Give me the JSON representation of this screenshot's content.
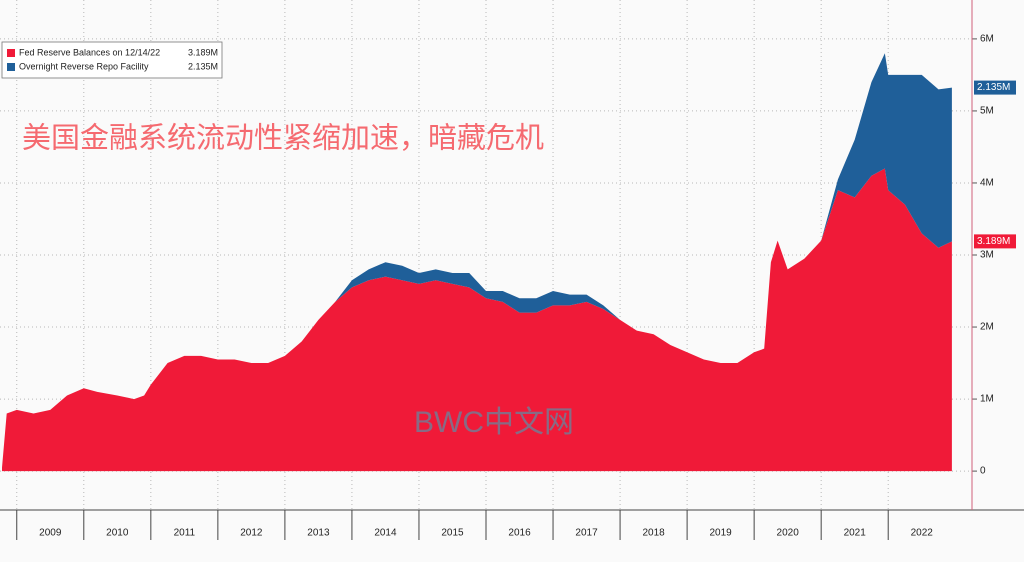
{
  "chart_data": {
    "type": "stacked_area",
    "title": "美国金融系统流动性紧缩加速，暗藏危机",
    "watermark": "BWC中文网",
    "x": [
      2008.78,
      2008.85,
      2009,
      2009.25,
      2009.5,
      2009.75,
      2010,
      2010.2,
      2010.5,
      2010.75,
      2010.9,
      2011,
      2011.25,
      2011.5,
      2011.75,
      2012,
      2012.25,
      2012.5,
      2012.75,
      2013,
      2013.25,
      2013.5,
      2013.75,
      2014,
      2014.25,
      2014.5,
      2014.75,
      2015,
      2015.25,
      2015.5,
      2015.75,
      2016,
      2016.25,
      2016.5,
      2016.75,
      2017,
      2017.25,
      2017.5,
      2017.75,
      2018,
      2018.25,
      2018.5,
      2018.75,
      2019,
      2019.25,
      2019.5,
      2019.75,
      2020,
      2020.15,
      2020.25,
      2020.35,
      2020.5,
      2020.75,
      2021,
      2021.25,
      2021.5,
      2021.75,
      2021.95,
      2022,
      2022.25,
      2022.5,
      2022.75,
      2022.95
    ],
    "series": [
      {
        "name": "Fed Reserve Balances on 12/14/22",
        "color": "#f01a38",
        "values": [
          0.05,
          0.8,
          0.85,
          0.8,
          0.85,
          1.05,
          1.15,
          1.1,
          1.05,
          1.0,
          1.05,
          1.2,
          1.5,
          1.6,
          1.6,
          1.55,
          1.55,
          1.5,
          1.5,
          1.6,
          1.8,
          2.1,
          2.35,
          2.55,
          2.65,
          2.7,
          2.65,
          2.6,
          2.65,
          2.6,
          2.55,
          2.4,
          2.35,
          2.2,
          2.2,
          2.3,
          2.3,
          2.35,
          2.25,
          2.1,
          1.95,
          1.9,
          1.75,
          1.65,
          1.55,
          1.5,
          1.5,
          1.65,
          1.7,
          2.9,
          3.2,
          2.8,
          2.95,
          3.2,
          3.9,
          3.8,
          4.1,
          4.2,
          3.9,
          3.7,
          3.3,
          3.1,
          3.189
        ],
        "value_labels": [
          null,
          null,
          null,
          null,
          null,
          null,
          null,
          null,
          null,
          null,
          null,
          null,
          null,
          null,
          null,
          null,
          null,
          null,
          null,
          null,
          null,
          null,
          null,
          null,
          null,
          null,
          null,
          null,
          null,
          null,
          null,
          null,
          null,
          null,
          null,
          null,
          null,
          null,
          null,
          null,
          null,
          null,
          null,
          null,
          null,
          null,
          null,
          null,
          null,
          null,
          null,
          null,
          null,
          null,
          null,
          null,
          null,
          null,
          null,
          null,
          null,
          null,
          "3.189M"
        ]
      },
      {
        "name": "Overnight Reverse Repo Facility",
        "color": "#1f5f99",
        "values": [
          0,
          0,
          0,
          0,
          0,
          0,
          0,
          0,
          0,
          0,
          0,
          0,
          0,
          0,
          0,
          0,
          0,
          0,
          0,
          0,
          0,
          0,
          0,
          0.1,
          0.15,
          0.2,
          0.2,
          0.15,
          0.15,
          0.15,
          0.2,
          0.1,
          0.15,
          0.2,
          0.2,
          0.2,
          0.15,
          0.1,
          0.05,
          0,
          0,
          0,
          0,
          0,
          0,
          0,
          0,
          0,
          0,
          0,
          0,
          0,
          0,
          0,
          0.15,
          0.8,
          1.3,
          1.6,
          1.6,
          1.8,
          2.2,
          2.2,
          2.135
        ],
        "value_labels": [
          null,
          null,
          null,
          null,
          null,
          null,
          null,
          null,
          null,
          null,
          null,
          null,
          null,
          null,
          null,
          null,
          null,
          null,
          null,
          null,
          null,
          null,
          null,
          null,
          null,
          null,
          null,
          null,
          null,
          null,
          null,
          null,
          null,
          null,
          null,
          null,
          null,
          null,
          null,
          null,
          null,
          null,
          null,
          null,
          null,
          null,
          null,
          null,
          null,
          null,
          null,
          null,
          null,
          null,
          null,
          null,
          null,
          null,
          null,
          null,
          null,
          null,
          "2.135M"
        ]
      }
    ],
    "xlim": [
      2008.75,
      2023.25
    ],
    "xticks": [
      2009,
      2010,
      2011,
      2012,
      2013,
      2014,
      2015,
      2016,
      2017,
      2018,
      2019,
      2020,
      2021,
      2022
    ],
    "ylim": [
      -0.54,
      6.54
    ],
    "yticks": [
      0,
      {
        "value": 1,
        "label": "1M"
      },
      {
        "value": 2,
        "label": "2M"
      },
      {
        "value": 3,
        "label": "3M"
      },
      {
        "value": 4,
        "label": "4M"
      },
      {
        "value": 5,
        "label": "5M"
      },
      {
        "value": 6,
        "label": "6M"
      }
    ],
    "grid": true,
    "legend": "top-left"
  }
}
